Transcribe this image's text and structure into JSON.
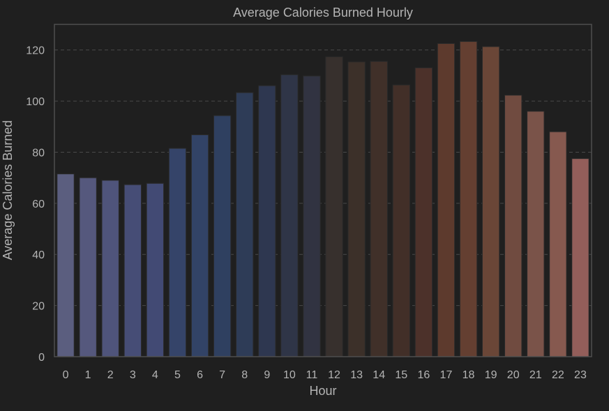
{
  "chart_data": {
    "type": "bar",
    "title": "Average Calories Burned Hourly",
    "xlabel": "Hour",
    "ylabel": "Average Calories Burned",
    "categories": [
      "0",
      "1",
      "2",
      "3",
      "4",
      "5",
      "6",
      "7",
      "8",
      "9",
      "10",
      "11",
      "12",
      "13",
      "14",
      "15",
      "16",
      "17",
      "18",
      "19",
      "20",
      "21",
      "22",
      "23"
    ],
    "values": [
      71.5,
      70.0,
      69.0,
      67.3,
      67.8,
      81.5,
      86.8,
      94.3,
      103.3,
      106.0,
      110.3,
      109.8,
      117.3,
      115.3,
      115.5,
      106.3,
      113.0,
      122.5,
      123.3,
      121.3,
      102.3,
      96.0,
      88.0,
      77.5
    ],
    "colors": [
      "#5b5e7f",
      "#55587d",
      "#4f547b",
      "#464d76",
      "#424a74",
      "#354469",
      "#324366",
      "#2f4060",
      "#2e3c57",
      "#2e3750",
      "#2f3547",
      "#313341",
      "#37302d",
      "#3c3029",
      "#403029",
      "#422f28",
      "#4c312a",
      "#5d3a2d",
      "#643f31",
      "#6a4637",
      "#704b40",
      "#7a5349",
      "#86594f",
      "#935e5a"
    ],
    "yticks": [
      "0",
      "20",
      "40",
      "60",
      "80",
      "100",
      "120"
    ],
    "ylim": [
      0,
      130
    ],
    "grid": "horizontal dashed",
    "legend": "none"
  }
}
